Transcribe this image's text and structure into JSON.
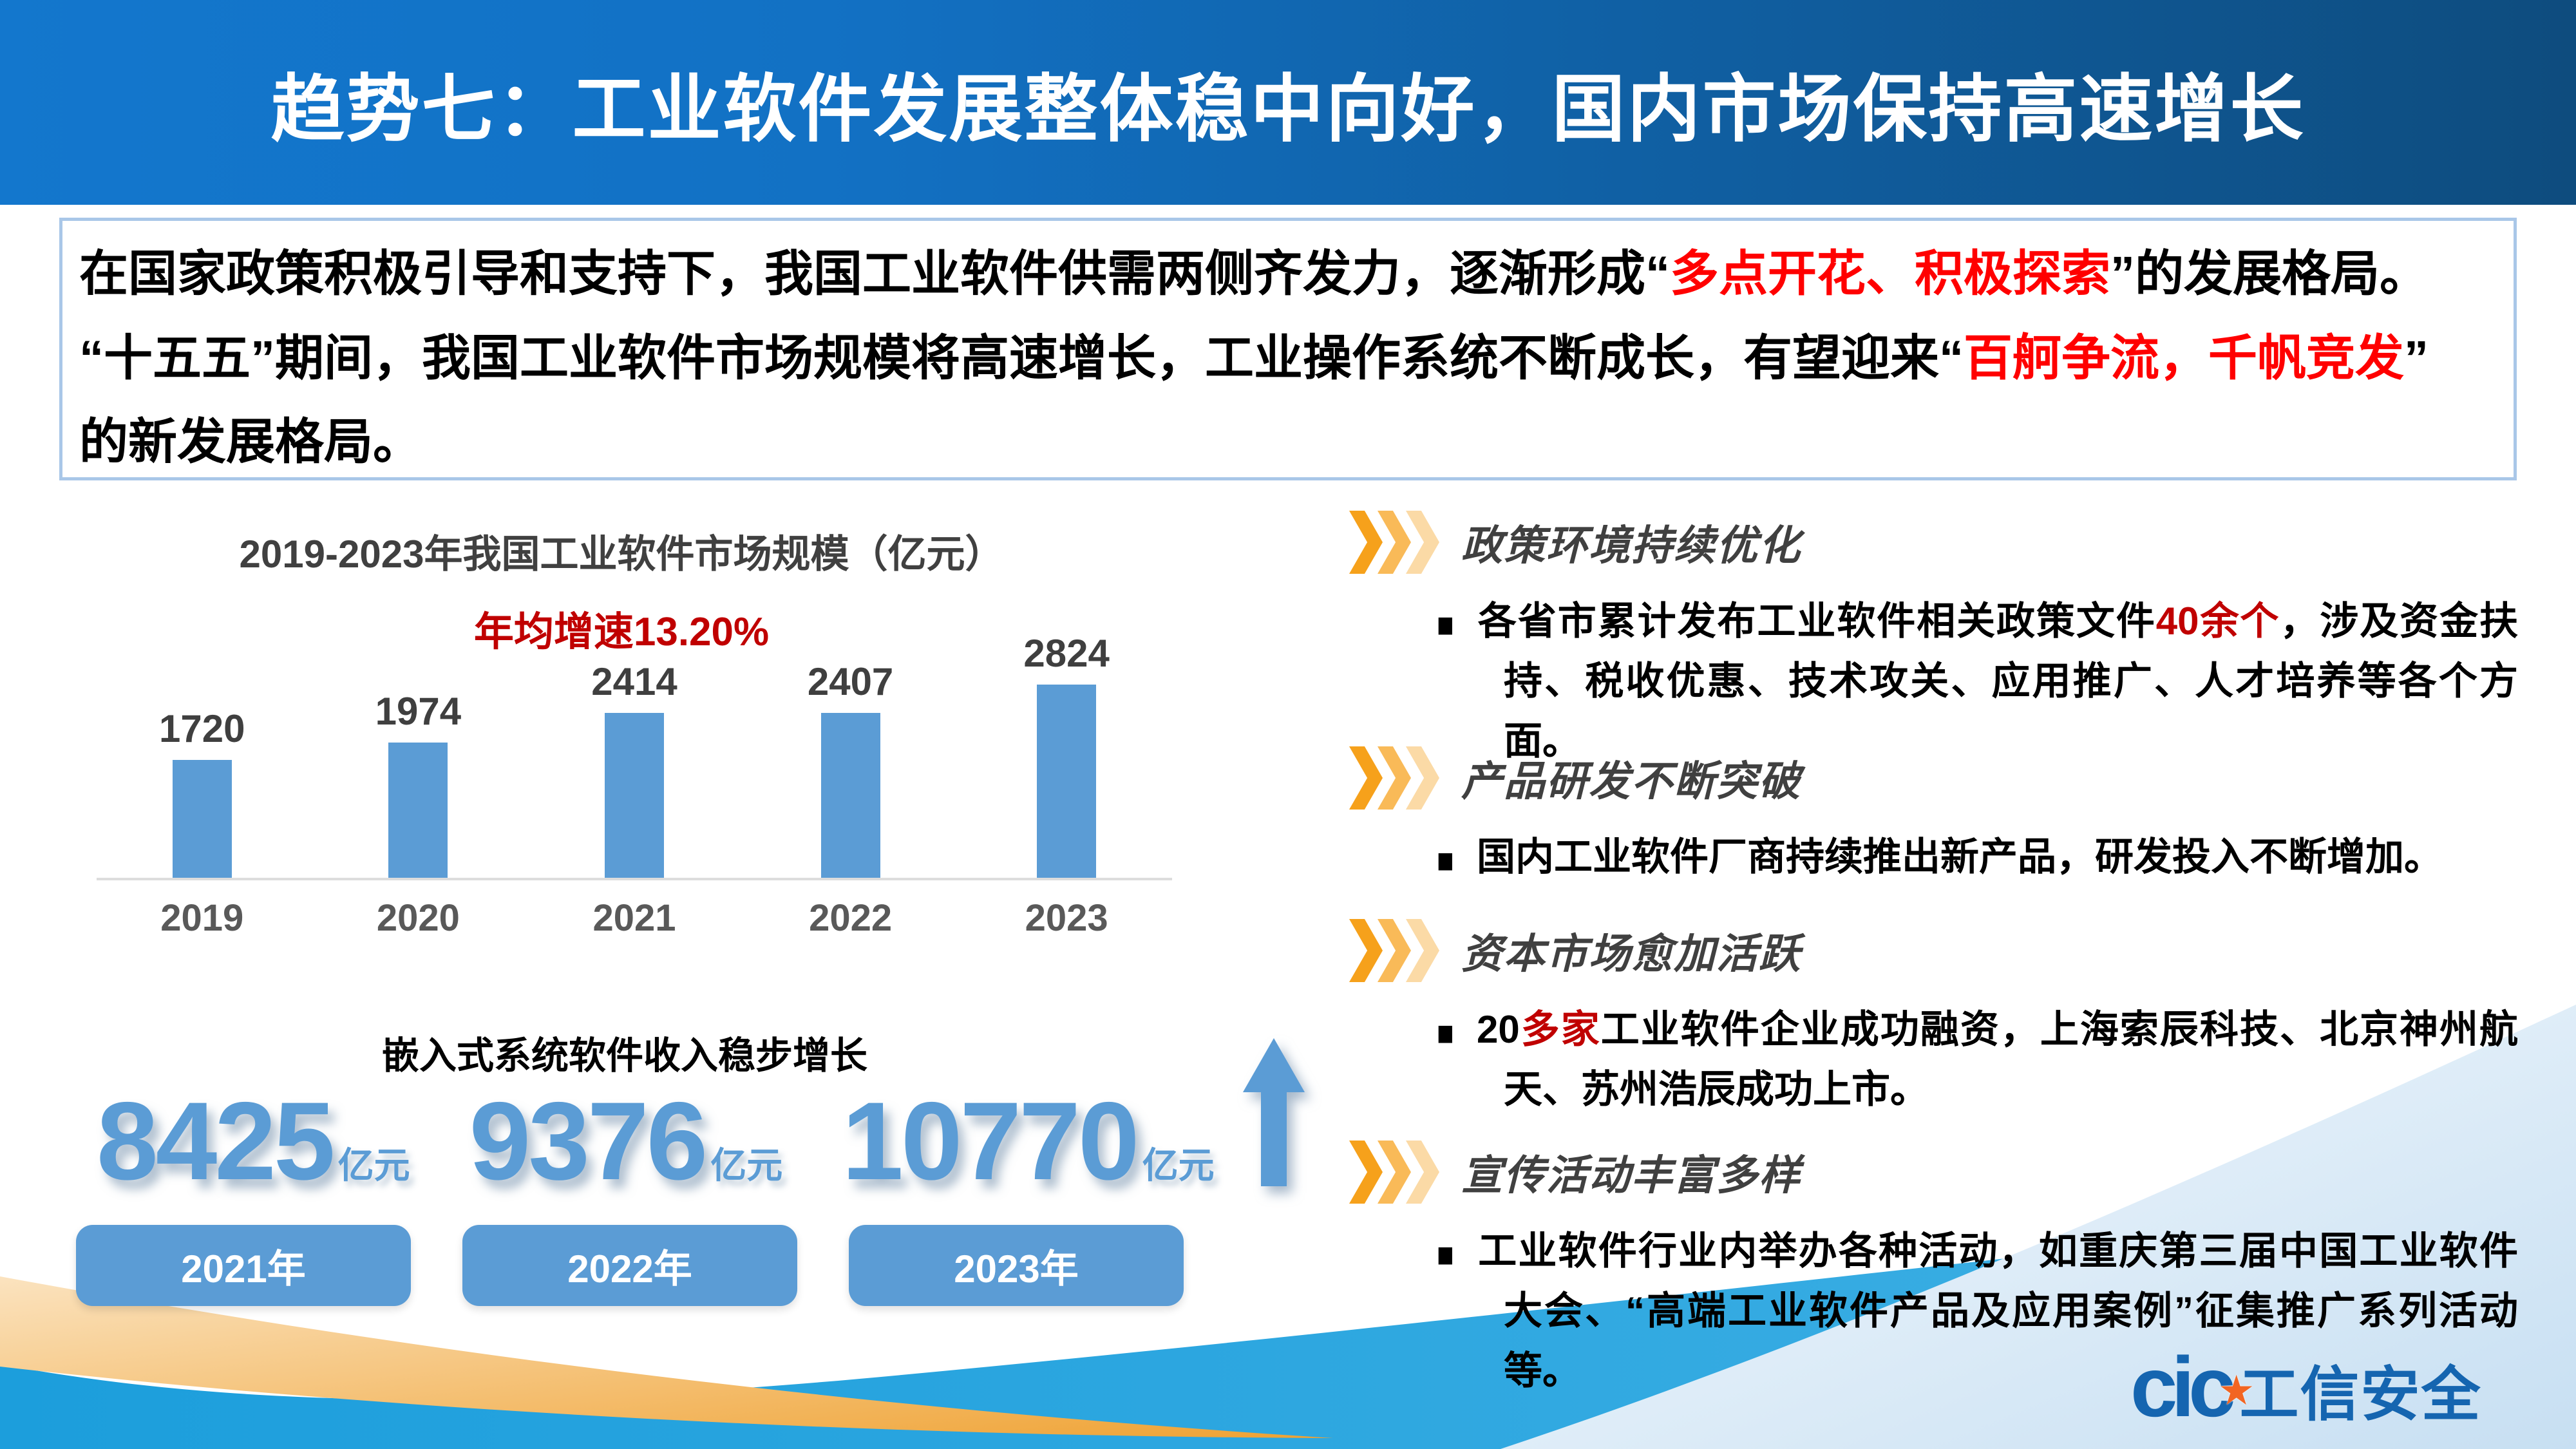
{
  "header": {
    "title": "趋势七：工业软件发展整体稳中向好，国内市场保持高速增长"
  },
  "intro": {
    "segments": [
      {
        "text": "在国家政策积极引导和支持下，我国工业软件供需两侧齐发力，逐渐形成“",
        "color": "black"
      },
      {
        "text": "多点开花、积极探索",
        "color": "red"
      },
      {
        "text": "”的发展格局。\n",
        "color": "black"
      },
      {
        "text": "“十五五”期间，我国工业软件市场规模将高速增长，工业操作系统不断成长，有望迎来“",
        "color": "black"
      },
      {
        "text": "百舸争流，千帆竞发",
        "color": "red"
      },
      {
        "text": "”\n的新发展格局。",
        "color": "black"
      }
    ]
  },
  "chart_data": {
    "type": "bar",
    "title": "2019-2023年我国工业软件市场规模（亿元）",
    "subtitle": "年均增速13.20%",
    "categories": [
      "2019",
      "2020",
      "2021",
      "2022",
      "2023"
    ],
    "values": [
      1720,
      1974,
      2414,
      2407,
      2824
    ],
    "xlabel": "",
    "ylabel": "",
    "ylim": [
      0,
      2900
    ],
    "grid": false,
    "legend": "none",
    "bar_color": "#5B9CD5",
    "value_labels": true
  },
  "embedded": {
    "caption": "嵌入式系统软件收入稳步增长",
    "stats": [
      {
        "value": "8425",
        "unit": "亿元",
        "year": "2021年"
      },
      {
        "value": "9376",
        "unit": "亿元",
        "year": "2022年"
      },
      {
        "value": "10770",
        "unit": "亿元",
        "year": "2023年"
      }
    ]
  },
  "sections": [
    {
      "marker": "■",
      "title": "政策环境持续优化",
      "segments": [
        {
          "text": "各省市累计发布工业软件相关政策文件",
          "color": "black"
        },
        {
          "text": "40余个",
          "color": "red"
        },
        {
          "text": "，涉及资金扶持、税收优惠、技术攻关、应用推广、人才培养等各个方面。",
          "color": "black"
        }
      ]
    },
    {
      "marker": "■",
      "title": "产品研发不断突破",
      "segments": [
        {
          "text": "国内工业软件厂商持续推出新产品，研发投入不断增加。",
          "color": "black"
        }
      ]
    },
    {
      "marker": "■",
      "title": "资本市场愈加活跃",
      "segments": [
        {
          "text": "20",
          "color": "black"
        },
        {
          "text": "多家",
          "color": "red"
        },
        {
          "text": "工业软件企业成功融资，上海索辰科技、北京神州航天、苏州浩辰成功上市。",
          "color": "black"
        }
      ]
    },
    {
      "marker": "■",
      "title": "宣传活动丰富多样",
      "segments": [
        {
          "text": "工业软件行业内举办各种活动，如重庆第三届中国工业软件大会、“高端工业软件产品及应用案例”征集推广系列活动等。",
          "color": "black"
        }
      ]
    }
  ],
  "logo": {
    "abbr": "cic",
    "star": "★",
    "name": "工信安全"
  },
  "colors": {
    "accent_blue": "#5B9CD5",
    "header_blue_left": "#1377CD",
    "header_blue_right": "#0E4C7E",
    "red_bright": "#FF0000",
    "red_dark": "#C00000",
    "wave_blue": "#23A4DF",
    "wave_orange": "#F0A437",
    "title_gray": "#404040"
  }
}
